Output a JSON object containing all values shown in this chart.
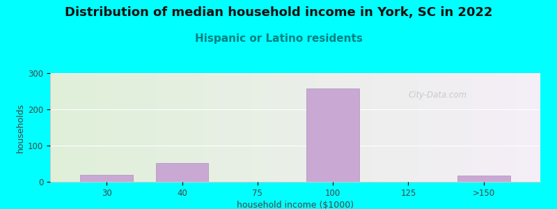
{
  "title": "Distribution of median household income in York, SC in 2022",
  "subtitle": "Hispanic or Latino residents",
  "xlabel": "household income ($1000)",
  "ylabel": "households",
  "background_color": "#00FFFF",
  "plot_bg_gradient_left": "#dff0d8",
  "plot_bg_gradient_right": "#f5eef8",
  "bar_color": "#c9a8d4",
  "bar_edgecolor": "#b090bc",
  "categories": [
    "30",
    "40",
    "75",
    "100",
    "125",
    ">150"
  ],
  "values": [
    20,
    52,
    0,
    258,
    0,
    18
  ],
  "bar_width": 0.7,
  "ylim": [
    0,
    300
  ],
  "yticks": [
    0,
    100,
    200,
    300
  ],
  "title_fontsize": 13,
  "subtitle_fontsize": 11,
  "subtitle_color": "#008080",
  "axis_label_fontsize": 9,
  "tick_fontsize": 8.5,
  "tick_color": "#444444",
  "watermark": "City-Data.com",
  "watermark_color": "#aaaaaa",
  "watermark_alpha": 0.55,
  "grid_color": "#ffffff",
  "spine_color": "#cccccc"
}
